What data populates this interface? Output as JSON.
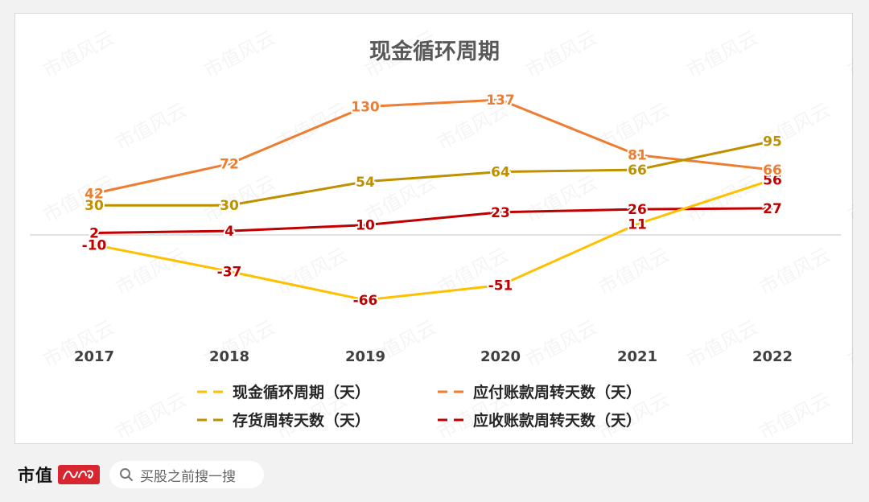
{
  "chart_data": {
    "type": "line",
    "title": "现金循环周期",
    "categories": [
      "2017",
      "2018",
      "2019",
      "2020",
      "2021",
      "2022"
    ],
    "series": [
      {
        "name": "现金循环周期（天）",
        "color": "#FFC000",
        "values": [
          -10,
          -37,
          -66,
          -51,
          11,
          56
        ],
        "label_color": "#C00000",
        "labels": [
          "-10",
          "-37",
          "-66",
          "-51",
          "11",
          "56"
        ]
      },
      {
        "name": "应付账款周转天数（天）",
        "color": "#ED7D31",
        "values": [
          42,
          72,
          130,
          137,
          81,
          66
        ],
        "label_color": "#ED7D31",
        "labels": [
          "42",
          "72",
          "130",
          "137",
          "81",
          "66"
        ]
      },
      {
        "name": "存货周转天数（天）",
        "color": "#BF9000",
        "values": [
          30,
          30,
          54,
          64,
          66,
          95
        ],
        "label_color": "#BF9000",
        "labels": [
          "30",
          "30",
          "54",
          "64",
          "66",
          "95"
        ]
      },
      {
        "name": "应收账款周转天数（天）",
        "color": "#C00000",
        "values": [
          2,
          4,
          10,
          23,
          26,
          27
        ],
        "label_color": "#C00000",
        "labels": [
          "2",
          "4",
          "10",
          "23",
          "26",
          "27"
        ]
      }
    ],
    "ylim": [
      -80,
      150
    ],
    "grid": false,
    "legend": "bottom"
  },
  "watermark": "市值风云",
  "footer": {
    "brand": "市值",
    "search_placeholder": "买股之前搜一搜"
  }
}
